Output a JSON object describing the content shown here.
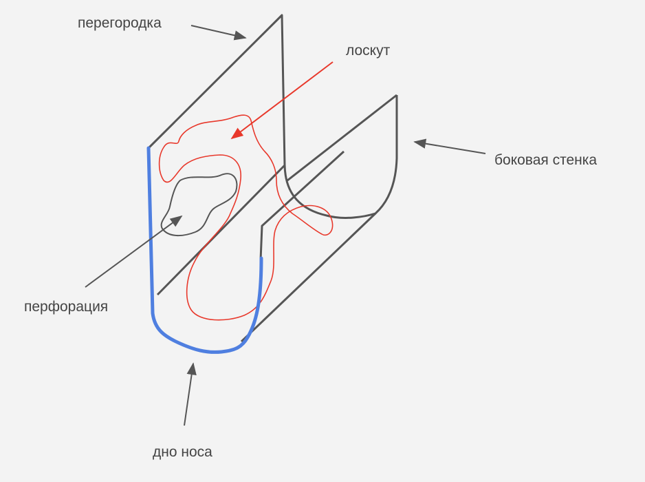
{
  "labels": {
    "septum": "перегородка",
    "flap": "лоскут",
    "side_wall": "боковая стенка",
    "perforation": "перфорация",
    "nasal_floor": "дно носа"
  },
  "colors": {
    "background": "#f3f3f3",
    "outline": "#555555",
    "flap": "#e8382b",
    "nasal_floor": "#4f7fe0",
    "text": "#444444"
  }
}
